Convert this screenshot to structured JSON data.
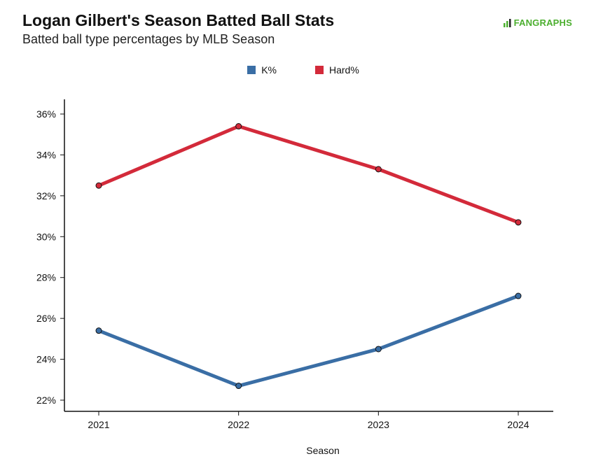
{
  "header": {
    "title": "Logan Gilbert's Season Batted Ball Stats",
    "subtitle": "Batted ball type percentages by MLB Season",
    "logo_text": "FANGRAPHS"
  },
  "colors": {
    "k_pct": "#3a6ea5",
    "hard_pct": "#d32a3a",
    "logo_green": "#4caf2f"
  },
  "chart_data": {
    "type": "line",
    "title": "Logan Gilbert's Season Batted Ball Stats",
    "subtitle": "Batted ball type percentages by MLB Season",
    "xlabel": "Season",
    "ylabel": "",
    "categories": [
      "2021",
      "2022",
      "2023",
      "2024"
    ],
    "ylim": [
      21.5,
      36.8
    ],
    "yticks": [
      22,
      24,
      26,
      28,
      30,
      32,
      34,
      36
    ],
    "ytick_labels": [
      "22%",
      "24%",
      "26%",
      "28%",
      "30%",
      "32%",
      "34%",
      "36%"
    ],
    "grid": false,
    "legend_position": "top-center",
    "series": [
      {
        "name": "K%",
        "color": "#3a6ea5",
        "values": [
          25.4,
          22.7,
          24.5,
          27.1
        ]
      },
      {
        "name": "Hard%",
        "color": "#d32a3a",
        "values": [
          32.5,
          35.4,
          33.3,
          30.7
        ]
      }
    ]
  }
}
